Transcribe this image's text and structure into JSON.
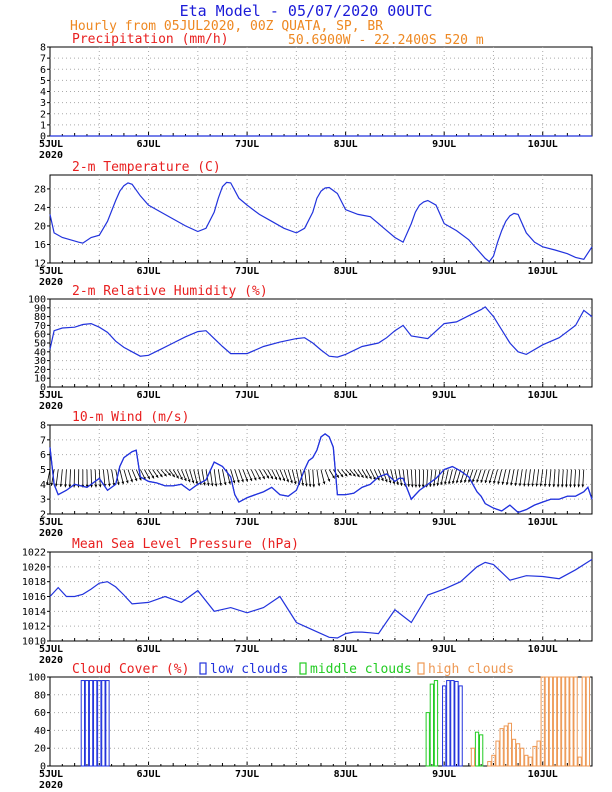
{
  "header": {
    "title": "Eta Model - 05/07/2020 00UTC",
    "line2": "Hourly from 05JUL2020, 00Z  QUATA, SP, BR",
    "line3": "50.6900W - 22.2400S     520  m"
  },
  "colors": {
    "title": "#1a1ad8",
    "subtitle": "#ee8822",
    "panel_title": "#e82020",
    "series": "#2233dd",
    "low_clouds": "#2233dd",
    "middle_clouds": "#22cc22",
    "high_clouds": "#ee9955",
    "grid": "#aaaaaa"
  },
  "x_axis": {
    "ticks": [
      {
        "hour": 0,
        "label": "5JUL"
      },
      {
        "hour": 24,
        "label": "6JUL"
      },
      {
        "hour": 48,
        "label": "7JUL"
      },
      {
        "hour": 72,
        "label": "8JUL"
      },
      {
        "hour": 96,
        "label": "9JUL"
      },
      {
        "hour": 120,
        "label": "10JUL"
      }
    ],
    "year_label": "2020",
    "range": [
      0,
      132
    ]
  },
  "chart_data": [
    {
      "type": "line",
      "name": "precipitation",
      "title": "Precipitation (mm/h)",
      "ylim": [
        0,
        8
      ],
      "yticks": [
        0,
        1,
        2,
        3,
        4,
        5,
        6,
        7,
        8
      ],
      "x": [
        0,
        132
      ],
      "values": [
        0,
        0
      ]
    },
    {
      "type": "line",
      "name": "temperature",
      "title": "2-m Temperature (C)",
      "ylim": [
        12,
        31
      ],
      "yticks": [
        12,
        16,
        20,
        24,
        28
      ],
      "x": [
        0,
        1,
        3,
        5,
        7,
        8,
        10,
        12,
        14,
        16,
        17,
        18,
        19,
        20,
        22,
        24,
        27,
        30,
        33,
        36,
        38,
        40,
        41,
        42,
        43,
        44,
        46,
        48,
        51,
        54,
        57,
        60,
        62,
        64,
        65,
        66,
        67,
        68,
        70,
        72,
        75,
        78,
        80,
        82,
        84,
        86,
        88,
        89,
        90,
        91,
        92,
        94,
        96,
        99,
        102,
        104,
        106,
        107,
        108,
        109,
        110,
        111,
        112,
        113,
        114,
        116,
        118,
        120,
        123,
        126,
        128,
        130,
        132
      ],
      "values": [
        22.5,
        18.5,
        17.5,
        17,
        16.5,
        16.3,
        17.5,
        18,
        21,
        25.5,
        27.5,
        28.7,
        29.3,
        29,
        26.5,
        24.5,
        23,
        21.5,
        20,
        18.8,
        19.5,
        23,
        26,
        28.5,
        29.4,
        29.3,
        26,
        24.5,
        22.5,
        21,
        19.5,
        18.5,
        19.5,
        23,
        26,
        27.5,
        28.2,
        28.3,
        27,
        23.5,
        22.5,
        22,
        20.5,
        19,
        17.5,
        16.5,
        20.5,
        23,
        24.5,
        25.2,
        25.5,
        24.5,
        20.5,
        19,
        17,
        15,
        13,
        12.3,
        13.5,
        16.5,
        19,
        21,
        22.2,
        22.7,
        22.5,
        18.5,
        16.5,
        15.5,
        14.8,
        14,
        13.2,
        12.8,
        15.5
      ]
    },
    {
      "type": "line",
      "name": "relative_humidity",
      "title": "2-m Relative Humidity (%)",
      "ylim": [
        0,
        100
      ],
      "yticks": [
        0,
        10,
        20,
        30,
        40,
        50,
        60,
        70,
        80,
        90,
        100
      ],
      "x": [
        0,
        1,
        3,
        6,
        8,
        10,
        12,
        14,
        16,
        18,
        20,
        22,
        24,
        27,
        30,
        33,
        36,
        38,
        40,
        42,
        44,
        48,
        52,
        56,
        60,
        62,
        64,
        66,
        68,
        70,
        72,
        76,
        80,
        82,
        84,
        86,
        88,
        92,
        96,
        99,
        102,
        105,
        106,
        108,
        110,
        112,
        114,
        116,
        120,
        124,
        128,
        130,
        132
      ],
      "values": [
        43,
        64,
        67,
        68,
        71,
        72,
        68,
        62,
        52,
        45,
        40,
        35,
        36,
        43,
        50,
        57,
        63,
        64,
        55,
        46,
        38,
        38,
        46,
        51,
        55,
        56,
        50,
        42,
        35,
        34,
        37,
        46,
        50,
        56,
        64,
        70,
        58,
        55,
        72,
        74,
        81,
        88,
        91,
        80,
        65,
        50,
        40,
        37,
        48,
        56,
        70,
        87,
        80
      ]
    },
    {
      "type": "line",
      "name": "wind_speed",
      "title": "10-m Wind (m/s)",
      "ylim": [
        2,
        8
      ],
      "yticks": [
        2,
        3,
        4,
        5,
        6,
        7,
        8
      ],
      "x": [
        0,
        1,
        2,
        4,
        6,
        9,
        12,
        14,
        16,
        17,
        18,
        20,
        21,
        22,
        24,
        26,
        28,
        30,
        32,
        34,
        36,
        38,
        40,
        42,
        44,
        45,
        46,
        48,
        50,
        52,
        54,
        56,
        58,
        60,
        62,
        63,
        64,
        65,
        66,
        67,
        68,
        69,
        70,
        72,
        74,
        76,
        78,
        80,
        82,
        84,
        85,
        86,
        88,
        89,
        90,
        92,
        94,
        96,
        98,
        100,
        102,
        104,
        105,
        106,
        108,
        110,
        112,
        114,
        116,
        118,
        120,
        122,
        124,
        126,
        128,
        130,
        131,
        132
      ],
      "values": [
        6.5,
        4.0,
        3.3,
        3.6,
        4.0,
        3.8,
        4.4,
        3.6,
        4.0,
        5.2,
        5.8,
        6.2,
        6.3,
        4.5,
        4.2,
        4.1,
        3.9,
        3.9,
        4.0,
        3.6,
        4.0,
        4.3,
        5.5,
        5.2,
        4.5,
        3.3,
        2.8,
        3.1,
        3.3,
        3.5,
        3.8,
        3.3,
        3.2,
        3.6,
        5.0,
        5.6,
        5.8,
        6.3,
        7.2,
        7.4,
        7.2,
        6.5,
        3.3,
        3.3,
        3.4,
        3.8,
        4.0,
        4.5,
        4.7,
        4.2,
        4.4,
        4.4,
        3.0,
        3.3,
        3.6,
        4.0,
        4.4,
        5.0,
        5.2,
        4.9,
        4.5,
        3.5,
        3.2,
        2.7,
        2.4,
        2.2,
        2.6,
        2.1,
        2.3,
        2.6,
        2.8,
        3.0,
        3.0,
        3.2,
        3.2,
        3.5,
        3.8,
        3.0
      ]
    },
    {
      "type": "line",
      "name": "mslp",
      "title": "Mean Sea Level Pressure (hPa)",
      "ylim": [
        1010,
        1022
      ],
      "yticks": [
        1010,
        1012,
        1014,
        1016,
        1018,
        1020,
        1022
      ],
      "x": [
        0,
        2,
        4,
        6,
        8,
        10,
        12,
        14,
        16,
        18,
        20,
        24,
        28,
        32,
        36,
        40,
        44,
        48,
        52,
        56,
        60,
        64,
        68,
        70,
        72,
        74,
        76,
        78,
        80,
        84,
        88,
        92,
        96,
        100,
        104,
        106,
        108,
        112,
        116,
        120,
        124,
        128,
        132
      ],
      "values": [
        1016,
        1017.2,
        1016,
        1016,
        1016.3,
        1017,
        1017.8,
        1018,
        1017.3,
        1016.2,
        1015,
        1015.2,
        1016,
        1015.2,
        1016.8,
        1014,
        1014.5,
        1013.8,
        1014.5,
        1016,
        1012.5,
        1011.5,
        1010.5,
        1010.4,
        1011,
        1011.2,
        1011.2,
        1011.1,
        1011,
        1014.2,
        1012.5,
        1016.2,
        1017,
        1018,
        1020,
        1020.6,
        1020.3,
        1018.2,
        1018.8,
        1018.7,
        1018.4,
        1019.6,
        1021
      ]
    },
    {
      "type": "bar",
      "name": "cloud_cover",
      "title": "Cloud Cover (%)",
      "legend": [
        "low clouds",
        "middle clouds",
        "high clouds"
      ],
      "ylim": [
        0,
        100
      ],
      "yticks": [
        0,
        20,
        40,
        60,
        80,
        100
      ],
      "series": [
        {
          "name": "low clouds",
          "hours": [
            8,
            9,
            10,
            11,
            12,
            13,
            14,
            96,
            97,
            98,
            99,
            100
          ],
          "values": [
            96,
            96,
            96,
            96,
            96,
            96,
            96,
            90,
            96,
            96,
            95,
            90
          ]
        },
        {
          "name": "middle clouds",
          "hours": [
            92,
            93,
            94,
            104,
            105
          ],
          "values": [
            60,
            92,
            96,
            38,
            35
          ]
        },
        {
          "name": "high clouds",
          "hours": [
            103,
            107,
            108,
            109,
            110,
            111,
            112,
            113,
            114,
            115,
            116,
            117,
            118,
            119,
            120,
            121,
            122,
            123,
            124,
            125,
            126,
            127,
            128,
            129,
            130,
            131
          ],
          "values": [
            20,
            5,
            12,
            28,
            42,
            45,
            48,
            30,
            25,
            20,
            12,
            10,
            22,
            28,
            100,
            100,
            100,
            100,
            100,
            100,
            100,
            100,
            100,
            10,
            100,
            100
          ]
        }
      ]
    },
    {
      "type": "barbs",
      "name": "wind_direction",
      "title": "10-m Wind (m/s)",
      "x": [
        0,
        4,
        8,
        12,
        16,
        20,
        24,
        28,
        32,
        36,
        40,
        44,
        48,
        52,
        56,
        60,
        64,
        68,
        72,
        76,
        80,
        84,
        88,
        92,
        96,
        100,
        104,
        108,
        112,
        116,
        120,
        124,
        128,
        132
      ],
      "direction_deg": [
        120,
        100,
        90,
        80,
        60,
        40,
        30,
        20,
        40,
        60,
        70,
        50,
        40,
        30,
        40,
        60,
        80,
        30,
        20,
        30,
        40,
        60,
        80,
        100,
        120,
        130,
        135,
        130,
        120,
        110,
        110,
        100,
        100,
        100
      ]
    }
  ]
}
